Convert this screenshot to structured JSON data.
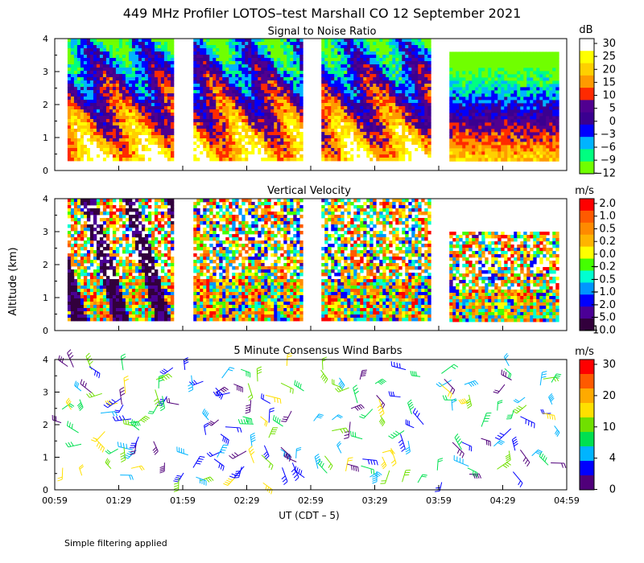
{
  "figure": {
    "title": "449 MHz Profiler LOTOS–test Marshall CO 12 September 2021",
    "footnote": "Simple filtering applied",
    "y_axis_label": "Altitude (km)",
    "x_axis_label": "UT  (CDT – 5)"
  },
  "chart_data": [
    {
      "type": "heatmap",
      "title": "Signal to Noise Ratio",
      "unit": "dB",
      "xlim": [
        "00:59",
        "04:59"
      ],
      "x_ticks": [
        "00:59",
        "01:29",
        "01:59",
        "02:29",
        "02:59",
        "03:29",
        "03:59",
        "04:29",
        "04:59"
      ],
      "ylim": [
        0,
        4
      ],
      "y_ticks": [
        0,
        1,
        2,
        3,
        4
      ],
      "colorbar_labels": [
        "30",
        "25",
        "20",
        "15",
        "10",
        "5",
        "0",
        "−3",
        "−6",
        "−9",
        "−12"
      ],
      "colorbar_colors": [
        "#ffffff",
        "#ffff00",
        "#ffd000",
        "#ff9a00",
        "#ff2a00",
        "#500090",
        "#3a0090",
        "#0000ff",
        "#00b4ff",
        "#00ff80",
        "#70ff00"
      ],
      "data_blocks": [
        {
          "start": "01:05",
          "end": "01:54",
          "bottom_km": 0.3,
          "top_km": 4.0
        },
        {
          "start": "02:04",
          "end": "02:54",
          "bottom_km": 0.3,
          "top_km": 4.0
        },
        {
          "start": "03:04",
          "end": "03:54",
          "bottom_km": 0.3,
          "top_km": 4.0
        },
        {
          "start": "04:04",
          "end": "04:54",
          "bottom_km": 0.3,
          "top_km": 3.6
        }
      ]
    },
    {
      "type": "heatmap",
      "title": "Vertical Velocity",
      "unit": "m/s",
      "xlim": [
        "00:59",
        "04:59"
      ],
      "x_ticks": [
        "00:59",
        "01:29",
        "01:59",
        "02:29",
        "02:59",
        "03:29",
        "03:59",
        "04:29",
        "04:59"
      ],
      "ylim": [
        0,
        4
      ],
      "y_ticks": [
        0,
        1,
        2,
        3,
        4
      ],
      "colorbar_labels": [
        "2.0",
        "1.0",
        "0.5",
        "0.2",
        "0.0",
        "−0.2",
        "−0.5",
        "−1.0",
        "−2.0",
        "−5.0",
        "−10.0"
      ],
      "colorbar_colors": [
        "#ff0000",
        "#ff5a00",
        "#ff8a00",
        "#ffb400",
        "#ffff00",
        "#44ff00",
        "#00ffd0",
        "#0096ff",
        "#0000ff",
        "#4b0096",
        "#32003c"
      ],
      "data_blocks": [
        {
          "start": "01:05",
          "end": "01:54",
          "bottom_km": 0.3,
          "top_km": 4.0
        },
        {
          "start": "02:04",
          "end": "02:54",
          "bottom_km": 0.3,
          "top_km": 4.0
        },
        {
          "start": "03:04",
          "end": "03:54",
          "bottom_km": 0.3,
          "top_km": 4.0
        },
        {
          "start": "04:04",
          "end": "04:54",
          "bottom_km": 0.3,
          "top_km": 3.0
        }
      ]
    },
    {
      "type": "scatter",
      "title": "5 Minute Consensus Wind Barbs",
      "unit": "m/s",
      "xlim": [
        "00:59",
        "04:59"
      ],
      "x_ticks": [
        "00:59",
        "01:29",
        "01:59",
        "02:29",
        "02:59",
        "03:29",
        "03:59",
        "04:29",
        "04:59"
      ],
      "ylim": [
        0,
        4
      ],
      "y_ticks": [
        0,
        1,
        2,
        3,
        4
      ],
      "colorbar_labels": [
        "30",
        "20",
        "10",
        "4",
        "0"
      ],
      "colorbar_colors": [
        "#ff0000",
        "#ff5a00",
        "#ffaa00",
        "#ffe000",
        "#70e000",
        "#00e050",
        "#00b4ff",
        "#0000ff",
        "#50007a"
      ]
    }
  ]
}
